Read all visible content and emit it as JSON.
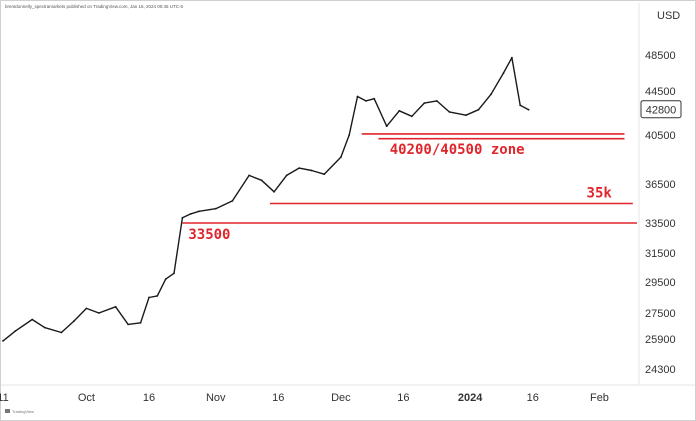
{
  "header_text": "brentdonnelly_spectramarkets published on TradingView.com, Jan 16, 2024 00:45 UTC-5",
  "watermark_text": "TradingView",
  "chart_data": {
    "type": "line",
    "title": "",
    "xlabel": "",
    "ylabel": "",
    "unit_label": "USD",
    "y_ticks": [
      24300,
      25900,
      27500,
      29500,
      31500,
      33500,
      36500,
      40500,
      44500,
      48500
    ],
    "x_ticks": [
      {
        "label": "11",
        "bold": false
      },
      {
        "label": "Oct",
        "bold": false
      },
      {
        "label": "16",
        "bold": false
      },
      {
        "label": "Nov",
        "bold": false
      },
      {
        "label": "16",
        "bold": false
      },
      {
        "label": "Dec",
        "bold": false
      },
      {
        "label": "16",
        "bold": false
      },
      {
        "label": "2024",
        "bold": true
      },
      {
        "label": "16",
        "bold": false
      },
      {
        "label": "Feb",
        "bold": false
      }
    ],
    "x_tick_dates": [
      "2023-09-11",
      "2023-10-01",
      "2023-10-16",
      "2023-11-01",
      "2023-11-16",
      "2023-12-01",
      "2023-12-16",
      "2024-01-01",
      "2024-01-16",
      "2024-02-01"
    ],
    "x_range": [
      "2023-09-11",
      "2024-02-10"
    ],
    "series": [
      {
        "x": [
          "2023-09-11",
          "2023-09-14",
          "2023-09-18",
          "2023-09-21",
          "2023-09-25",
          "2023-09-28",
          "2023-10-01",
          "2023-10-04",
          "2023-10-08",
          "2023-10-11",
          "2023-10-14",
          "2023-10-16",
          "2023-10-18",
          "2023-10-20",
          "2023-10-22",
          "2023-10-24",
          "2023-10-26",
          "2023-10-28",
          "2023-11-01",
          "2023-11-05",
          "2023-11-09",
          "2023-11-12",
          "2023-11-15",
          "2023-11-18",
          "2023-11-21",
          "2023-11-24",
          "2023-11-27",
          "2023-12-01",
          "2023-12-03",
          "2023-12-05",
          "2023-12-07",
          "2023-12-09",
          "2023-12-12",
          "2023-12-15",
          "2023-12-18",
          "2023-12-21",
          "2023-12-24",
          "2023-12-27",
          "2023-12-31",
          "2024-01-03",
          "2024-01-06",
          "2024-01-09",
          "2024-01-11",
          "2024-01-13",
          "2024-01-15"
        ],
        "values": [
          25800,
          26400,
          27100,
          26600,
          26300,
          27000,
          27800,
          27500,
          27900,
          26800,
          26900,
          28500,
          28600,
          29700,
          30100,
          33900,
          34200,
          34400,
          34600,
          35200,
          37200,
          36800,
          35900,
          37200,
          37800,
          37600,
          37300,
          38700,
          40500,
          44000,
          43600,
          43800,
          41300,
          42700,
          42200,
          43400,
          43600,
          42600,
          42300,
          42800,
          44200,
          46500,
          48200,
          43200,
          42800
        ]
      }
    ],
    "last_price": 42800,
    "horizontal_levels": [
      {
        "value": 40600,
        "from": "2023-12-06",
        "to": "2024-02-07",
        "label": "40200/40500 zone"
      },
      {
        "value": 40200,
        "from": "2023-12-10",
        "to": "2024-02-07"
      },
      {
        "value": 35000,
        "from": "2023-11-14",
        "to": "2024-02-09",
        "label": "35k"
      },
      {
        "value": 33500,
        "from": "2023-10-24",
        "to": "2024-02-10",
        "label": "33500"
      }
    ],
    "colors": {
      "price": "#1a1a1a",
      "level": "#e0262c",
      "last_price_bg": "#ffffff",
      "last_price_border": "#333333"
    }
  }
}
